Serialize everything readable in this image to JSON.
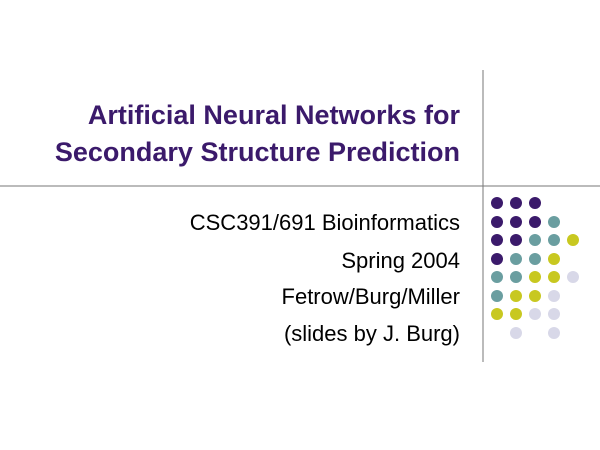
{
  "title": {
    "lines": [
      "Artificial Neural Networks for",
      "Secondary Structure Prediction"
    ]
  },
  "subtitle": {
    "lines": [
      "CSC391/691 Bioinformatics",
      "Spring 2004",
      "Fetrow/Burg/Miller",
      "(slides by J. Burg)"
    ]
  }
}
